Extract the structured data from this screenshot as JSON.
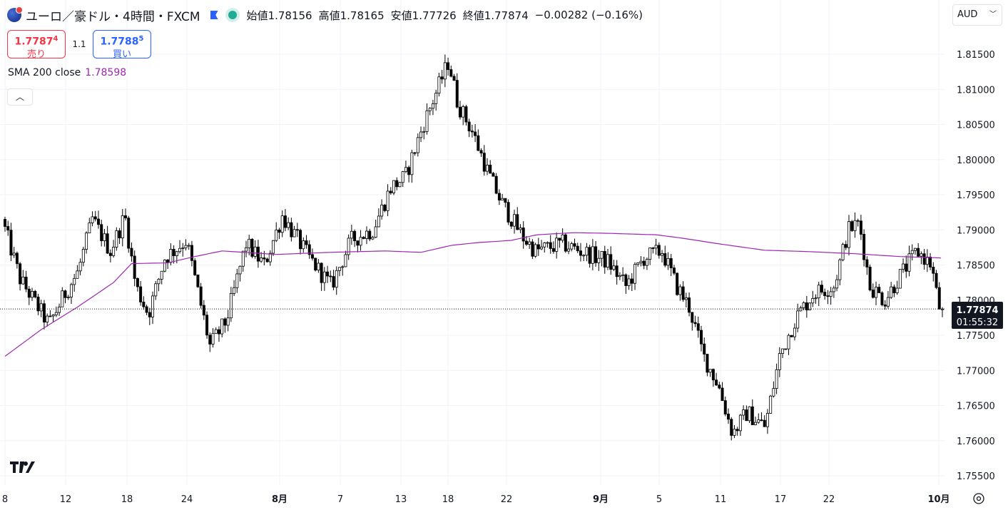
{
  "header": {
    "symbol_title": "ユーロ／豪ドル・4時間・FXCM",
    "symbol_icon": "euro-aud-flag-icon",
    "ohlc": [
      {
        "label": "始値",
        "value": "1.78156"
      },
      {
        "label": "高値",
        "value": "1.78165"
      },
      {
        "label": "安値",
        "value": "1.77726"
      },
      {
        "label": "終値",
        "value": "1.77874"
      }
    ],
    "change": "−0.00282 (−0.16%)",
    "currency": "AUD"
  },
  "trade": {
    "sell_price_main": "1.7787",
    "sell_price_sup": "4",
    "sell_label": "売り",
    "spread": "1.1",
    "buy_price_main": "1.7788",
    "buy_price_sup": "5",
    "buy_label": "買い"
  },
  "indicator": {
    "label": "SMA 200 close",
    "value": "1.78598"
  },
  "price_label": {
    "value": "1.77874",
    "countdown": "01:55:32"
  },
  "colors": {
    "sma": "#9c27b0",
    "up": "#ffffff",
    "down": "#000000",
    "sell": "#f23645",
    "buy": "#2962ff"
  },
  "chart_data": {
    "type": "candlestick",
    "y_ticks": [
      "1.81500",
      "1.81000",
      "1.80500",
      "1.80000",
      "1.79500",
      "1.79000",
      "1.78500",
      "1.78000",
      "1.77500",
      "1.77000",
      "1.76500",
      "1.76000",
      "1.75500"
    ],
    "x_ticks": [
      "8",
      "12",
      "18",
      "24",
      "8月",
      "7",
      "13",
      "18",
      "22",
      "9月",
      "5",
      "11",
      "17",
      "22",
      "10月"
    ],
    "ylim": [
      1.7525,
      1.8175
    ],
    "last_price": 1.77874,
    "anchors": [
      {
        "d": 0,
        "v": 1.7915
      },
      {
        "d": 1,
        "v": 1.783
      },
      {
        "d": 2.6,
        "v": 1.7765
      },
      {
        "d": 3.5,
        "v": 1.781
      },
      {
        "d": 4.2,
        "v": 1.784
      },
      {
        "d": 5,
        "v": 1.7915
      },
      {
        "d": 6,
        "v": 1.787
      },
      {
        "d": 6.8,
        "v": 1.792
      },
      {
        "d": 7.4,
        "v": 1.782
      },
      {
        "d": 8.1,
        "v": 1.778
      },
      {
        "d": 9,
        "v": 1.786
      },
      {
        "d": 10.2,
        "v": 1.7885
      },
      {
        "d": 11.5,
        "v": 1.7735
      },
      {
        "d": 12.4,
        "v": 1.777
      },
      {
        "d": 13.5,
        "v": 1.788
      },
      {
        "d": 14.5,
        "v": 1.785
      },
      {
        "d": 15.5,
        "v": 1.792
      },
      {
        "d": 17,
        "v": 1.786
      },
      {
        "d": 18.2,
        "v": 1.782
      },
      {
        "d": 19.3,
        "v": 1.7885
      },
      {
        "d": 20.5,
        "v": 1.79
      },
      {
        "d": 21.5,
        "v": 1.796
      },
      {
        "d": 22.3,
        "v": 1.7975
      },
      {
        "d": 23.3,
        "v": 1.805
      },
      {
        "d": 24.7,
        "v": 1.814
      },
      {
        "d": 25.2,
        "v": 1.808
      },
      {
        "d": 26,
        "v": 1.804
      },
      {
        "d": 26.9,
        "v": 1.798
      },
      {
        "d": 27.6,
        "v": 1.794
      },
      {
        "d": 28.8,
        "v": 1.789
      },
      {
        "d": 29.5,
        "v": 1.787
      },
      {
        "d": 31,
        "v": 1.788
      },
      {
        "d": 32,
        "v": 1.787
      },
      {
        "d": 33.5,
        "v": 1.7855
      },
      {
        "d": 34.5,
        "v": 1.782
      },
      {
        "d": 35.5,
        "v": 1.786
      },
      {
        "d": 36.5,
        "v": 1.787
      },
      {
        "d": 37.3,
        "v": 1.782
      },
      {
        "d": 38,
        "v": 1.779
      },
      {
        "d": 38.8,
        "v": 1.772
      },
      {
        "d": 39.6,
        "v": 1.768
      },
      {
        "d": 40.4,
        "v": 1.761
      },
      {
        "d": 41.2,
        "v": 1.764
      },
      {
        "d": 42.2,
        "v": 1.762
      },
      {
        "d": 43,
        "v": 1.772
      },
      {
        "d": 43.9,
        "v": 1.7775
      },
      {
        "d": 44.9,
        "v": 1.781
      },
      {
        "d": 46,
        "v": 1.782
      },
      {
        "d": 46.8,
        "v": 1.79
      },
      {
        "d": 47.4,
        "v": 1.791
      },
      {
        "d": 48,
        "v": 1.782
      },
      {
        "d": 48.8,
        "v": 1.78
      },
      {
        "d": 49.8,
        "v": 1.784
      },
      {
        "d": 50.6,
        "v": 1.787
      },
      {
        "d": 51.4,
        "v": 1.785
      },
      {
        "d": 51.8,
        "v": 1.779
      }
    ],
    "sma": [
      {
        "d": 0,
        "v": 1.772
      },
      {
        "d": 2,
        "v": 1.7758
      },
      {
        "d": 4,
        "v": 1.779
      },
      {
        "d": 6,
        "v": 1.7825
      },
      {
        "d": 7,
        "v": 1.7852
      },
      {
        "d": 9,
        "v": 1.7853
      },
      {
        "d": 10.5,
        "v": 1.7862
      },
      {
        "d": 12,
        "v": 1.787
      },
      {
        "d": 15,
        "v": 1.7865
      },
      {
        "d": 18,
        "v": 1.7868
      },
      {
        "d": 21,
        "v": 1.787
      },
      {
        "d": 23,
        "v": 1.7868
      },
      {
        "d": 24.7,
        "v": 1.7878
      },
      {
        "d": 26.2,
        "v": 1.7882
      },
      {
        "d": 28,
        "v": 1.7885
      },
      {
        "d": 29.4,
        "v": 1.7893
      },
      {
        "d": 31.5,
        "v": 1.7896
      },
      {
        "d": 33.5,
        "v": 1.7895
      },
      {
        "d": 36,
        "v": 1.7893
      },
      {
        "d": 37.5,
        "v": 1.7888
      },
      {
        "d": 39.5,
        "v": 1.788
      },
      {
        "d": 42,
        "v": 1.7871
      },
      {
        "d": 44.5,
        "v": 1.7869
      },
      {
        "d": 47,
        "v": 1.7866
      },
      {
        "d": 49.5,
        "v": 1.7862
      },
      {
        "d": 51.8,
        "v": 1.786
      }
    ]
  }
}
